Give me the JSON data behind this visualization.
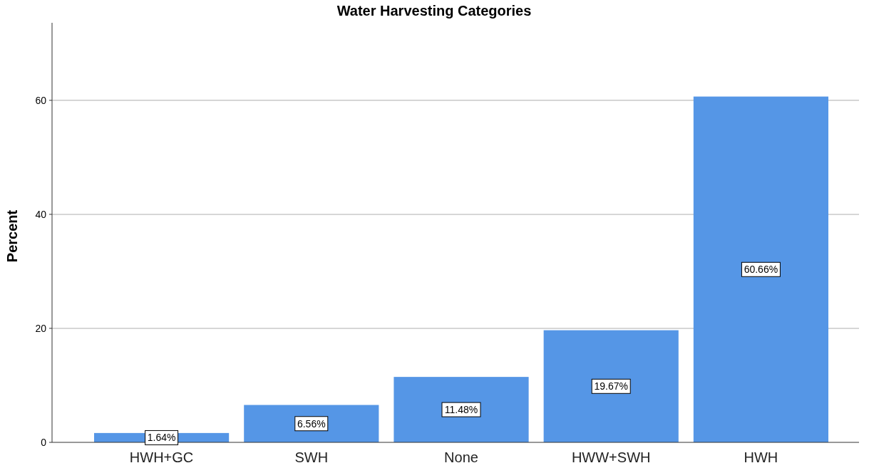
{
  "chart_data": {
    "type": "bar",
    "title": "Water Harvesting Categories",
    "ylabel": "Percent",
    "categories": [
      "HWH+GC",
      "SWH",
      "None",
      "HWW+SWH",
      "HWH"
    ],
    "values": [
      1.64,
      6.56,
      11.48,
      19.67,
      60.66
    ],
    "value_labels": [
      "1.64%",
      "6.56%",
      "11.48%",
      "19.67%",
      "60.66%"
    ],
    "color": "#5596e6",
    "ylim": [
      0,
      73.6
    ],
    "yticks": [
      0,
      20,
      40,
      60
    ],
    "grid": "y"
  }
}
